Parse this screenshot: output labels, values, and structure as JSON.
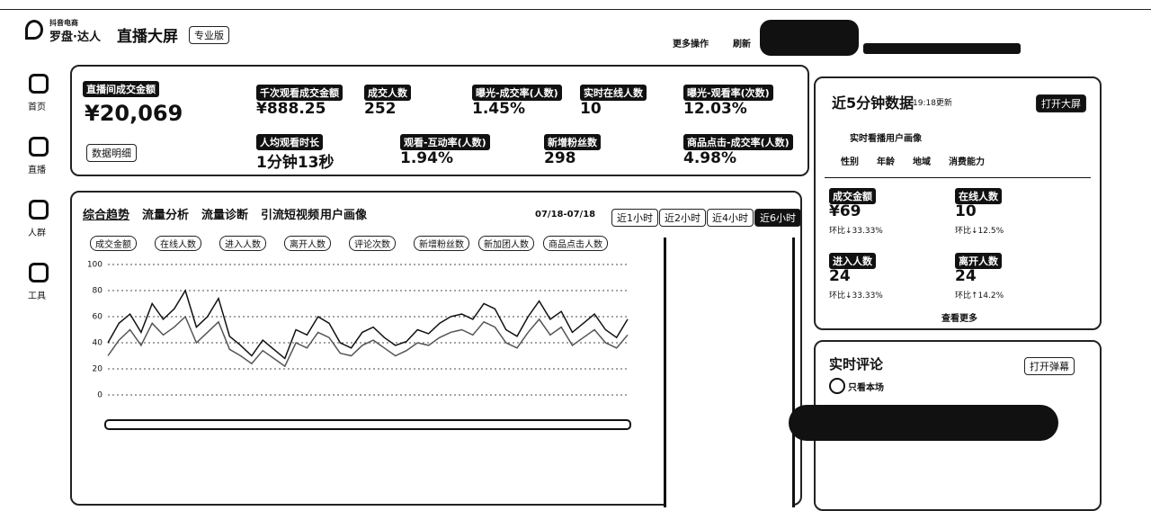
{
  "header": {
    "brand_sub": "抖音电商",
    "brand": "罗盘·达人",
    "title": "直播大屏",
    "edition": "专业版",
    "more": "更多操作",
    "refresh": "刷新"
  },
  "sidebar": [
    "首页",
    "直播",
    "人群",
    "工具"
  ],
  "core": {
    "label": "直播间成交金额",
    "value": "¥20,069",
    "detail": "数据明细"
  },
  "metrics": [
    {
      "label": "千次观看成交金额",
      "value": "¥888.25"
    },
    {
      "label": "成交人数",
      "value": "252"
    },
    {
      "label": "曝光-成交率(人数)",
      "value": "1.45%"
    },
    {
      "label": "实时在线人数",
      "value": "10"
    },
    {
      "label": "曝光-观看率(次数)",
      "value": "12.03%"
    },
    {
      "label": "人均观看时长",
      "value": "1分钟13秒"
    },
    {
      "label": "观看-互动率(人数)",
      "value": "1.94%"
    },
    {
      "label": "新增粉丝数",
      "value": "298"
    },
    {
      "label": "商品点击-成交率(人数)",
      "value": "4.98%"
    }
  ],
  "trend": {
    "tabs": [
      "综合趋势",
      "流量分析",
      "流量诊断",
      "引流短视频",
      "用户画像"
    ],
    "date": "07/18-07/18",
    "ranges": [
      "近1小时",
      "近2小时",
      "近4小时",
      "近6小时"
    ],
    "more_metrics": [
      "进入人数",
      "离开人数",
      "评论次数",
      "新增粉丝数",
      "新加团人数",
      "商品点击人数"
    ]
  },
  "five_min": {
    "title": "近5分钟数据",
    "updated": "19:18更新",
    "open": "打开大屏",
    "portrait": "实时看播用户画像",
    "filters": [
      "性别",
      "年龄",
      "地域",
      "消费能力"
    ],
    "items": [
      {
        "label": "成交金额",
        "value": "¥69",
        "change": "环比↓33.33%"
      },
      {
        "label": "在线人数",
        "value": "10",
        "change": "环比↓12.5%"
      },
      {
        "label": "进入人数",
        "value": "24",
        "change": "环比↓33.33%"
      },
      {
        "label": "离开人数",
        "value": "24",
        "change": "环比↑14.2%"
      }
    ],
    "more": "查看更多"
  },
  "comments": {
    "title": "实时评论",
    "open": "打开弹幕",
    "only": "只看本场"
  },
  "chart_data": {
    "type": "line",
    "ylim": [
      0,
      100
    ],
    "yticks": [
      0,
      20,
      40,
      60,
      80,
      100
    ],
    "grid": true,
    "series": [
      {
        "name": "成交金额",
        "color": "#111111",
        "values": [
          40,
          55,
          62,
          48,
          70,
          58,
          66,
          80,
          52,
          60,
          74,
          45,
          38,
          30,
          42,
          35,
          28,
          50,
          46,
          60,
          55,
          40,
          36,
          48,
          52,
          44,
          38,
          41,
          50,
          47,
          55,
          60,
          62,
          58,
          70,
          66,
          50,
          45,
          60,
          72,
          58,
          64,
          48,
          55,
          62,
          50,
          44,
          58
        ]
      },
      {
        "name": "在线人数",
        "color": "#555555",
        "values": [
          30,
          42,
          50,
          38,
          55,
          46,
          52,
          60,
          40,
          48,
          56,
          35,
          30,
          24,
          34,
          28,
          22,
          40,
          36,
          48,
          44,
          32,
          30,
          38,
          42,
          36,
          30,
          34,
          40,
          38,
          44,
          48,
          50,
          46,
          56,
          52,
          40,
          36,
          48,
          58,
          46,
          52,
          38,
          44,
          50,
          40,
          36,
          46
        ]
      }
    ]
  }
}
